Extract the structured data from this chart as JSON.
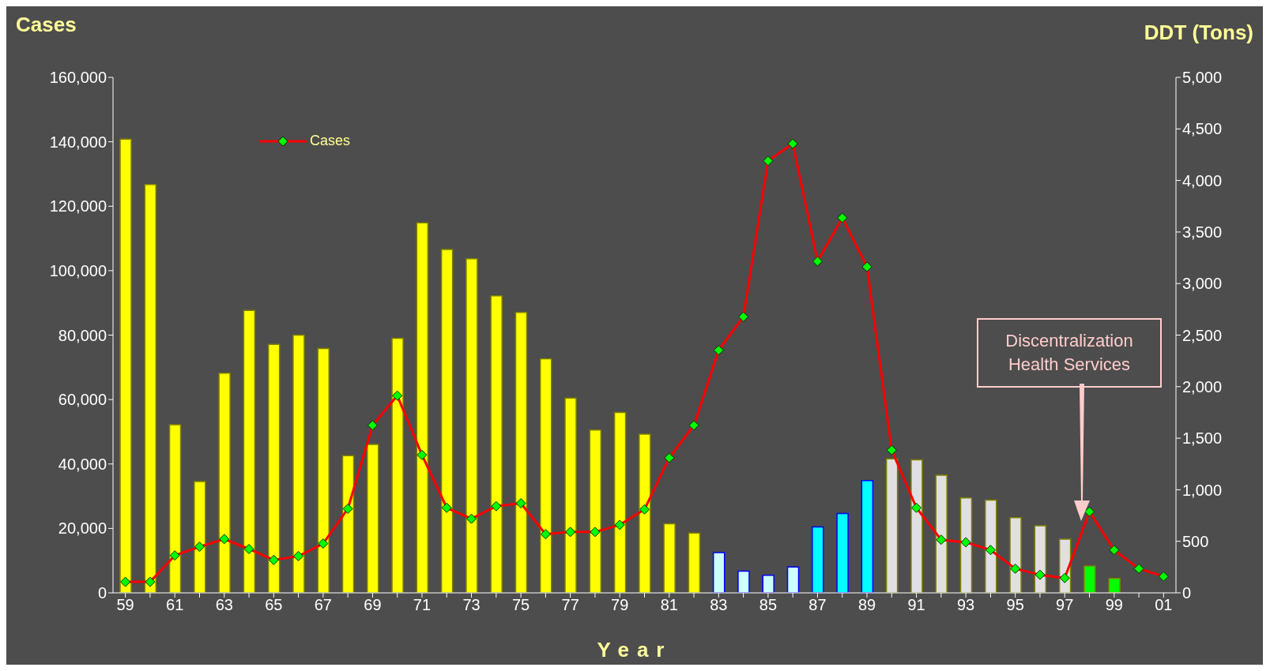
{
  "chart_data": {
    "type": "bar",
    "ylabel": "Cases",
    "y2label": "DDT (Tons)",
    "xlabel": "Year",
    "categories": [
      "59",
      null,
      "61",
      null,
      "63",
      null,
      "65",
      null,
      "67",
      null,
      "69",
      null,
      "71",
      null,
      "73",
      null,
      "75",
      null,
      "77",
      null,
      "79",
      null,
      "81",
      null,
      "83",
      null,
      "85",
      null,
      "87",
      null,
      "89",
      null,
      "91",
      null,
      "93",
      null,
      "95",
      null,
      "97",
      null,
      "99",
      null,
      "01"
    ],
    "series": [
      {
        "axis": "y2",
        "colors": [
          "#ffff00",
          "#ffff00",
          "#ffff00",
          "#ffff00",
          "#ffff00",
          "#ffff00",
          "#ffff00",
          "#ffff00",
          "#ffff00",
          "#ffff00",
          "#ffff00",
          "#ffff00",
          "#ffff00",
          "#ffff00",
          "#ffff00",
          "#ffff00",
          "#ffff00",
          "#ffff00",
          "#ffff00",
          "#ffff00",
          "#ffff00",
          "#ffff00",
          "#ffff00",
          "#ffff00",
          "#ccffff",
          "#ccffff",
          "#ccffff",
          "#ccffff",
          "#00ffff",
          "#00ffff",
          "#00ffff",
          "#e0e0e0",
          "#e0e0e0",
          "#e0e0e0",
          "#e0e0e0",
          "#e0e0e0",
          "#e0e0e0",
          "#e0e0e0",
          "#e0e0e0",
          "#00ff00",
          "#00ff00",
          "#00ff00",
          "#00ff00"
        ],
        "values": [
          4400,
          3960,
          1630,
          1080,
          2130,
          2740,
          2410,
          2500,
          2370,
          1330,
          1440,
          2470,
          3590,
          3330,
          3240,
          2880,
          2720,
          2270,
          1890,
          1580,
          1750,
          1540,
          670,
          580,
          390,
          210,
          170,
          250,
          640,
          770,
          1090,
          1300,
          1290,
          1140,
          920,
          900,
          730,
          650,
          520,
          260,
          140,
          null,
          null
        ]
      },
      {
        "type": "line",
        "name": "Cases",
        "color": "#ff0000",
        "values": [
          3400,
          3400,
          11600,
          14300,
          16700,
          13600,
          10200,
          11400,
          15300,
          26100,
          52000,
          61200,
          42800,
          26400,
          23000,
          26900,
          27800,
          18200,
          18900,
          18900,
          21100,
          25900,
          41900,
          52000,
          75300,
          85700,
          134100,
          139400,
          102900,
          116400,
          101200,
          44300,
          26400,
          16500,
          15700,
          13300,
          7500,
          5600,
          4600,
          25200,
          13300,
          7500,
          5100
        ]
      }
    ],
    "ylim": [
      0,
      160000
    ],
    "yticks": [
      0,
      {
        "value": 20000,
        "label": "20,000"
      },
      {
        "value": 40000,
        "label": "40,000"
      },
      {
        "value": 60000,
        "label": "60,000"
      },
      {
        "value": 80000,
        "label": "80,000"
      },
      {
        "value": 100000,
        "label": "100,000"
      },
      {
        "value": 120000,
        "label": "120,000"
      },
      {
        "value": 140000,
        "label": "140,000"
      },
      {
        "value": 160000,
        "label": "160,000"
      }
    ],
    "y2lim": [
      0,
      5000
    ],
    "y2ticks": [
      0,
      500,
      {
        "value": 1000,
        "label": "1,000"
      },
      {
        "value": 1500,
        "label": "1,500"
      },
      {
        "value": 2000,
        "label": "2,000"
      },
      {
        "value": 2500,
        "label": "2,500"
      },
      {
        "value": 3000,
        "label": "3,000"
      },
      {
        "value": 3500,
        "label": "3,500"
      },
      {
        "value": 4000,
        "label": "4,000"
      },
      {
        "value": 4500,
        "label": "4,500"
      },
      {
        "value": 5000,
        "label": "5,000"
      }
    ],
    "marker": "diamond",
    "legend": "top left",
    "annotations": [
      "Discentralization Health Services"
    ]
  }
}
